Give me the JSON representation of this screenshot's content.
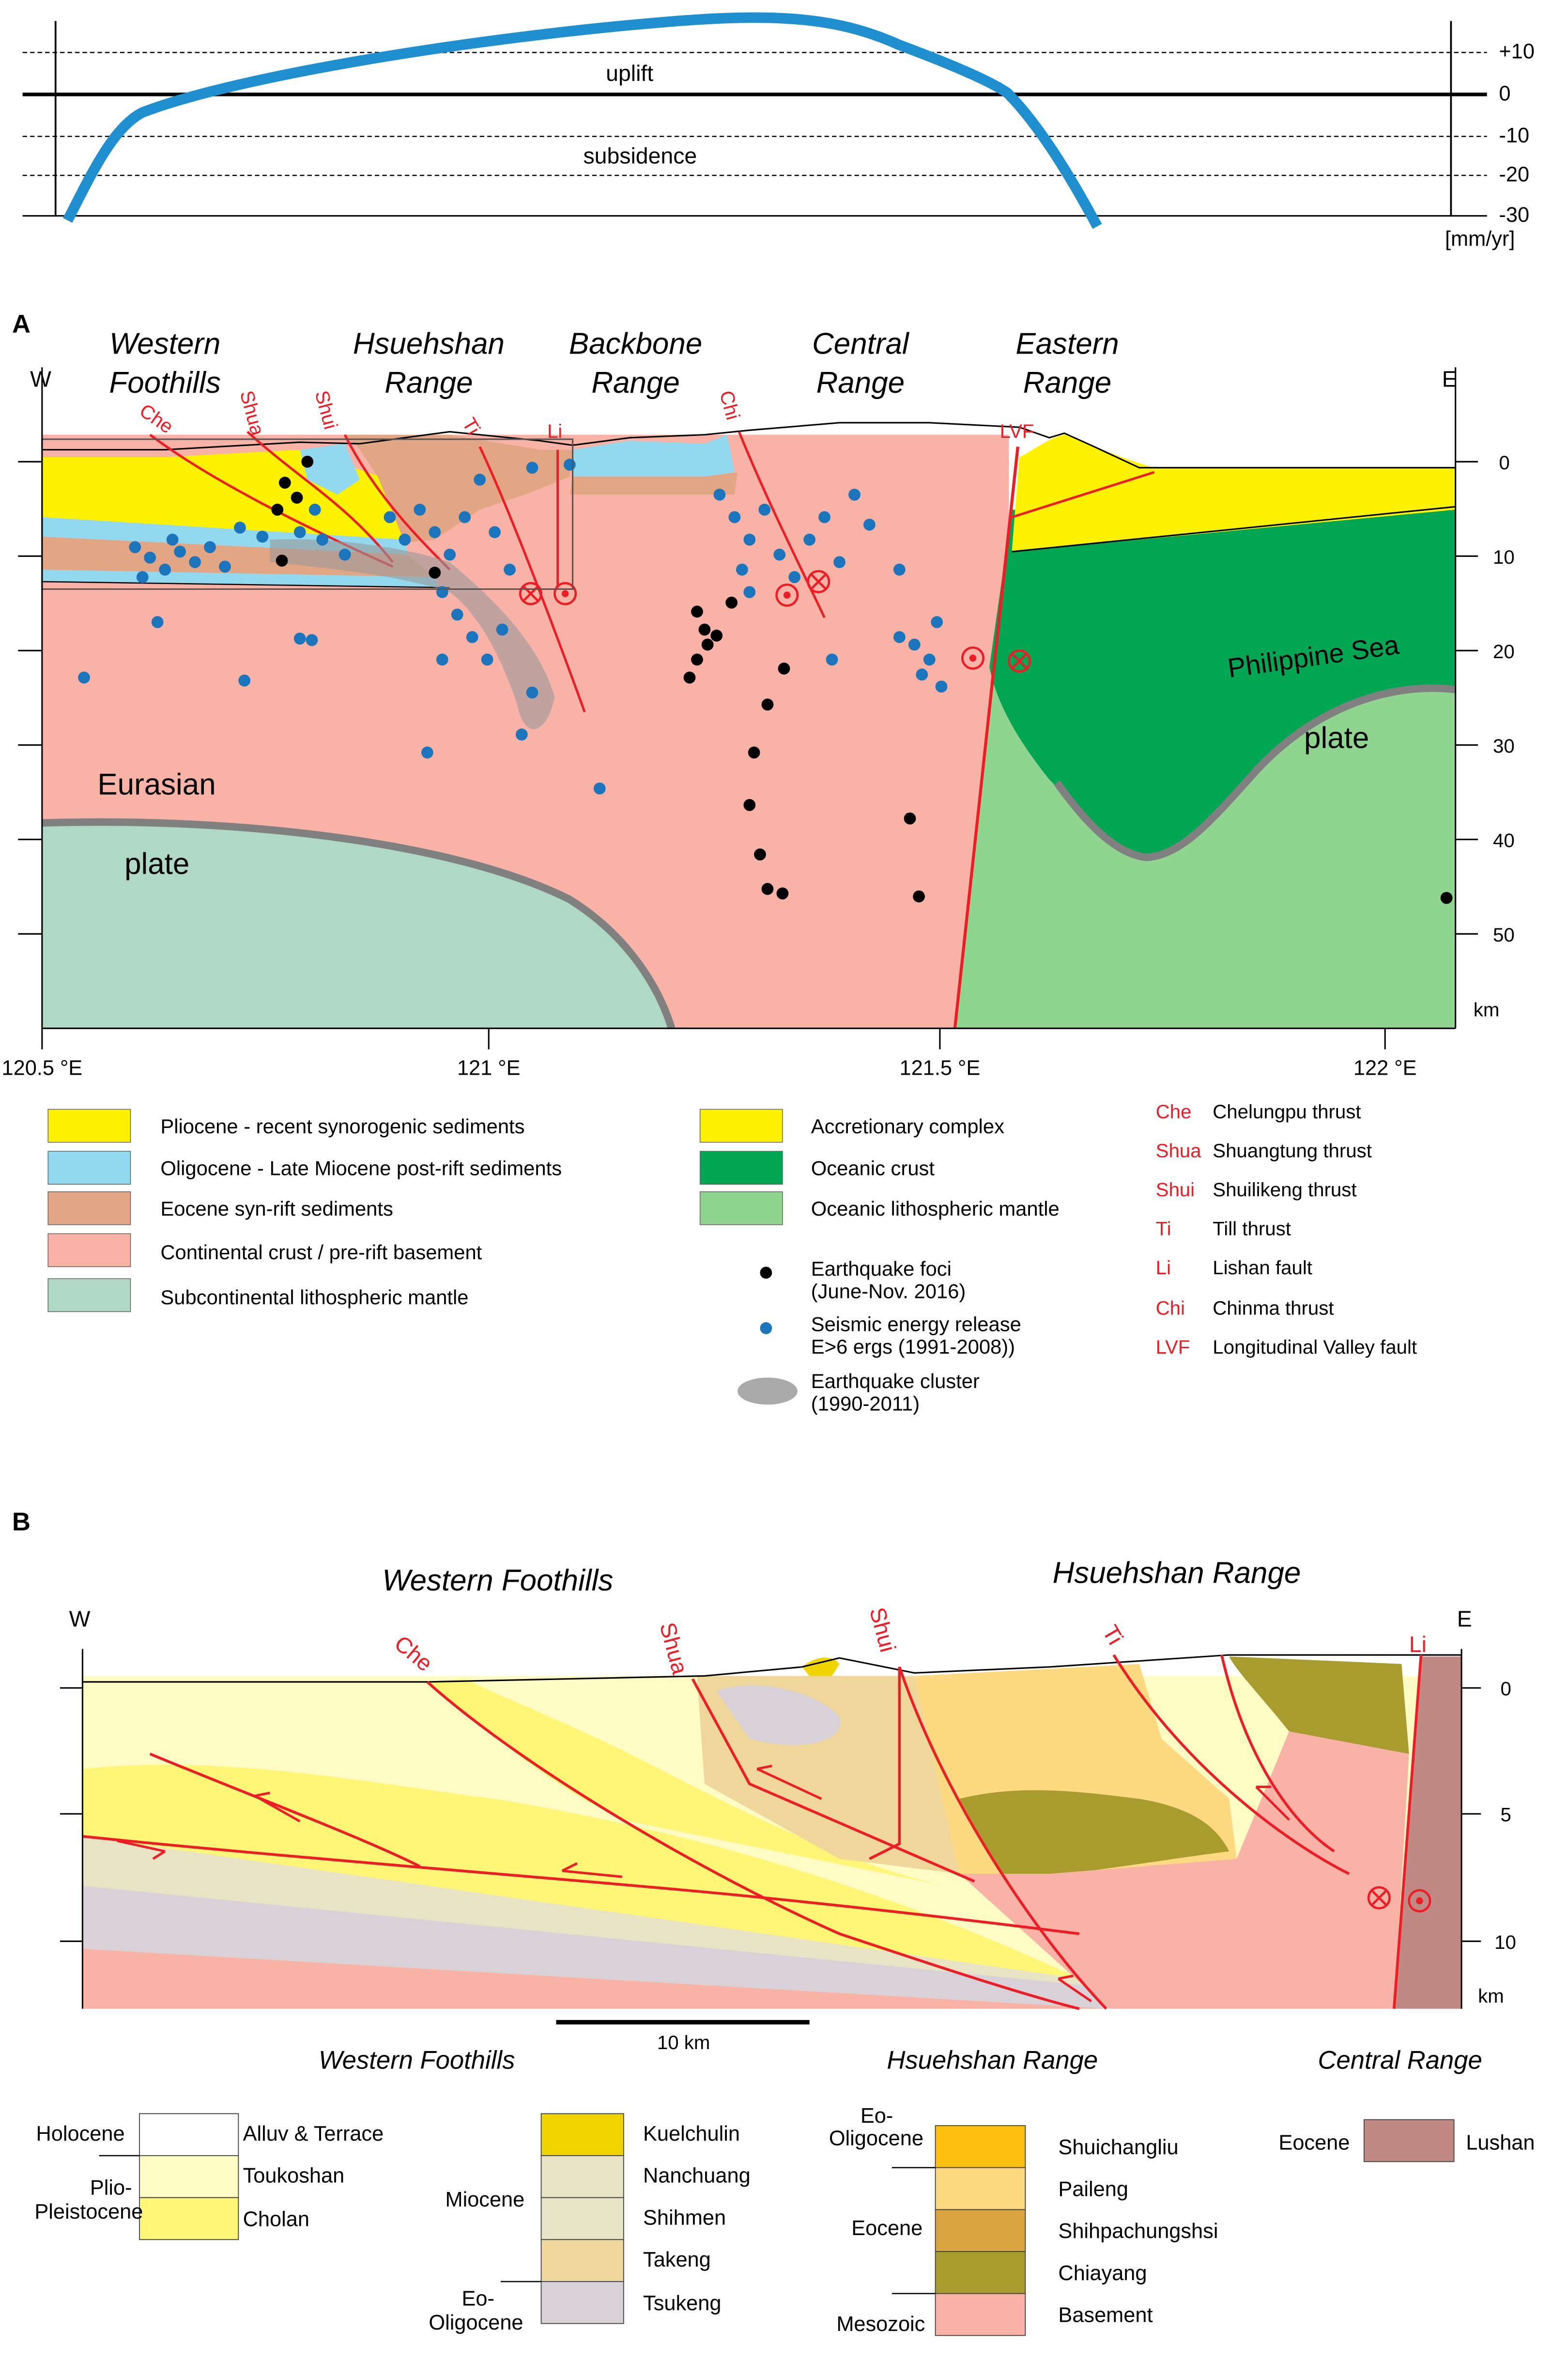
{
  "profile": {
    "uplift_label": "uplift",
    "subsidence_label": "subsidence",
    "ticks": [
      "+10",
      "0",
      "-10",
      "-20",
      "-30"
    ],
    "unit": "[mm/yr]",
    "curve_color": "#1f8fd0"
  },
  "panelA": {
    "letter": "A",
    "west": "W",
    "east": "E",
    "regions": [
      {
        "line1": "Western",
        "line2": "Foothills"
      },
      {
        "line1": "Hsuehshan",
        "line2": "Range"
      },
      {
        "line1": "Backbone",
        "line2": "Range"
      },
      {
        "line1": "Central",
        "line2": "Range"
      },
      {
        "line1": "Eastern",
        "line2": "Range"
      }
    ],
    "faults": [
      "Che",
      "Shua",
      "Shui",
      "Ti",
      "Li",
      "Chi",
      "LVF"
    ],
    "depth_ticks": [
      "0",
      "10",
      "20",
      "30",
      "40",
      "50"
    ],
    "depth_unit": "km",
    "lon_ticks": [
      "120.5 °E",
      "121 °E",
      "121.5 °E",
      "122 °E"
    ],
    "labels": {
      "eurasian": "Eurasian",
      "plate_w": "plate",
      "philippine": "Philippine Sea",
      "plate_e": "plate"
    },
    "colors": {
      "pliocene": "#fff200",
      "oligocene": "#92d9f0",
      "eocene": "#e3a685",
      "continental": "#f9b2a6",
      "subcontinental": "#b0d8c6",
      "oceanic_crust": "#00a651",
      "oceanic_mantle": "#8fd48f",
      "fault": "#ee1c25",
      "seismic": "#1a75bc",
      "foci": "#000000"
    },
    "legend_units": [
      "Pliocene - recent synorogenic sediments",
      "Oligocene - Late Miocene post-rift sediments",
      "Eocene syn-rift sediments",
      "Continental crust / pre-rift basement",
      "Subcontinental lithospheric mantle"
    ],
    "legend_plate": [
      "Accretionary complex",
      "Oceanic crust",
      "Oceanic lithospheric mantle"
    ],
    "legend_symbols": {
      "foci_1": "Earthquake foci",
      "foci_2": "(June-Nov. 2016)",
      "energy_1": "Seismic energy release",
      "energy_2": "E>6 ergs (1991-2008))",
      "cluster_1": "Earthquake cluster",
      "cluster_2": "(1990-2011)"
    },
    "legend_faults": [
      {
        "abbr": "Che",
        "name": "Chelungpu thrust"
      },
      {
        "abbr": "Shua",
        "name": "Shuangtung thrust"
      },
      {
        "abbr": "Shui",
        "name": "Shuilikeng thrust"
      },
      {
        "abbr": "Ti",
        "name": "Till thrust"
      },
      {
        "abbr": "Li",
        "name": "Lishan fault"
      },
      {
        "abbr": "Chi",
        "name": "Chinma thrust"
      },
      {
        "abbr": "LVF",
        "name": "Longitudinal Valley fault"
      }
    ]
  },
  "panelB": {
    "letter": "B",
    "west": "W",
    "east": "E",
    "regions": [
      "Western Foothills",
      "Hsuehshan Range"
    ],
    "faults": [
      "Che",
      "Shua",
      "Shui",
      "Ti",
      "Li"
    ],
    "depth_ticks": [
      "0",
      "5",
      "10"
    ],
    "depth_unit": "km",
    "scale_label": "10 km",
    "colors": {
      "toukoshan": "#fffbc4",
      "cholan": "#fff577",
      "kuelchulin": "#efd400",
      "nanchuang": "#e9e3c6",
      "shihmen": "#e8e4c8",
      "takeng": "#efd69b",
      "tsukeng": "#d8d2d8",
      "shuichangliu": "#fdc010",
      "paileng": "#fdd981",
      "shihpachungshsi": "#d9a33d",
      "chiayang": "#a89c2f",
      "basement": "#f9b2a6",
      "lushan": "#c08983"
    }
  },
  "stratigraphy": {
    "headers": {
      "wf": "Western Foothills",
      "hr": "Hsuehshan Range",
      "cr": "Central Range"
    },
    "wf_ages": {
      "holocene": "Holocene",
      "plio_1": "Plio-",
      "plio_2": "Pleistocene"
    },
    "wf_units": [
      "Alluv & Terrace",
      "Toukoshan",
      "Cholan"
    ],
    "mio_ages": {
      "miocene": "Miocene",
      "eo_1": "Eo-",
      "eo_2": "Oligocene"
    },
    "mio_units": [
      "Kuelchulin",
      "Nanchuang",
      "Shihmen",
      "Takeng",
      "Tsukeng"
    ],
    "hr_ages": {
      "eo_1": "Eo-",
      "eo_2": "Oligocene",
      "eocene": "Eocene",
      "mesozoic": "Mesozoic"
    },
    "hr_units": [
      "Shuichangliu",
      "Paileng",
      "Shihpachungshsi",
      "Chiayang",
      "Basement"
    ],
    "cr_age": "Eocene",
    "cr_unit": "Lushan"
  }
}
